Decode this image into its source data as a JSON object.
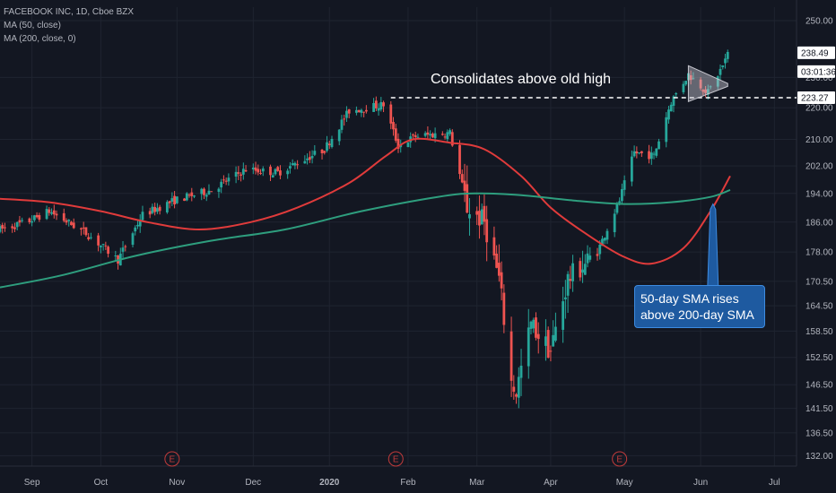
{
  "legend": {
    "symbol": "FACEBOOK INC, 1D, Cboe BZX",
    "ma50": "MA (50, close)",
    "ma200": "MA (200, close, 0)"
  },
  "colors": {
    "background": "#131722",
    "grid": "#1f2430",
    "up": "#26a69a",
    "down": "#ef5350",
    "ma50": "#e03b3b",
    "ma200": "#2e9e7e",
    "text": "#b2b5be",
    "callout": "#1e5aa0",
    "earnings": "#c23b3b"
  },
  "chart_data": {
    "type": "candlestick",
    "title": "FACEBOOK INC, 1D, Cboe BZX",
    "y_axis": {
      "side": "right",
      "ticks": [
        132.0,
        136.5,
        141.5,
        146.5,
        152.5,
        158.5,
        164.5,
        170.5,
        178.0,
        186.0,
        194.0,
        202.0,
        210.0,
        220.0,
        230.0,
        250.0
      ],
      "tick_labels": [
        "132.00",
        "136.50",
        "141.50",
        "146.50",
        "152.50",
        "158.50",
        "164.50",
        "170.50",
        "178.00",
        "186.00",
        "194.00",
        "202.00",
        "210.00",
        "220.00",
        "230.00",
        "250.00"
      ],
      "range": [
        130,
        255
      ],
      "scale": "log"
    },
    "x_axis": {
      "labels": [
        "Sep",
        "Oct",
        "Nov",
        "Dec",
        "2020",
        "Feb",
        "Mar",
        "Apr",
        "May",
        "Jun",
        "Jul"
      ],
      "label_dates": [
        "2019-09-03",
        "2019-10-01",
        "2019-11-01",
        "2019-12-02",
        "2020-01-02",
        "2020-02-03",
        "2020-03-02",
        "2020-04-01",
        "2020-05-01",
        "2020-06-01",
        "2020-07-01"
      ],
      "range": [
        "2019-08-21",
        "2020-07-10"
      ]
    },
    "grid": true,
    "legend_placement": "top-left",
    "series": [
      {
        "name": "MA (50, close)",
        "type": "line",
        "color": "#e03b3b",
        "points": [
          [
            "2019-08-21",
            192.5
          ],
          [
            "2019-09-10",
            191.5
          ],
          [
            "2019-10-01",
            189
          ],
          [
            "2019-10-20",
            186
          ],
          [
            "2019-11-10",
            184
          ],
          [
            "2019-12-01",
            186
          ],
          [
            "2019-12-20",
            190
          ],
          [
            "2020-01-10",
            197
          ],
          [
            "2020-01-25",
            205
          ],
          [
            "2020-02-05",
            210
          ],
          [
            "2020-02-20",
            209
          ],
          [
            "2020-03-05",
            207
          ],
          [
            "2020-03-20",
            199
          ],
          [
            "2020-04-01",
            190
          ],
          [
            "2020-04-15",
            183
          ],
          [
            "2020-04-30",
            177
          ],
          [
            "2020-05-12",
            175
          ],
          [
            "2020-05-25",
            179
          ],
          [
            "2020-06-05",
            189
          ],
          [
            "2020-06-13",
            199
          ]
        ]
      },
      {
        "name": "MA (200, close, 0)",
        "type": "line",
        "color": "#2e9e7e",
        "points": [
          [
            "2019-08-21",
            169
          ],
          [
            "2019-09-15",
            172
          ],
          [
            "2019-10-15",
            177
          ],
          [
            "2019-11-15",
            181
          ],
          [
            "2019-12-15",
            184
          ],
          [
            "2020-01-15",
            189
          ],
          [
            "2020-02-15",
            193
          ],
          [
            "2020-03-01",
            194
          ],
          [
            "2020-03-20",
            193.5
          ],
          [
            "2020-04-10",
            192
          ],
          [
            "2020-05-01",
            191
          ],
          [
            "2020-05-20",
            191.5
          ],
          [
            "2020-06-05",
            193
          ],
          [
            "2020-06-13",
            195
          ]
        ]
      }
    ],
    "price_path": [
      [
        "2019-08-21",
        184
      ],
      [
        "2019-09-01",
        186
      ],
      [
        "2019-09-10",
        189
      ],
      [
        "2019-09-25",
        183
      ],
      [
        "2019-10-08",
        176
      ],
      [
        "2019-10-18",
        188
      ],
      [
        "2019-10-31",
        192
      ],
      [
        "2019-11-15",
        195
      ],
      [
        "2019-11-29",
        201
      ],
      [
        "2019-12-12",
        200
      ],
      [
        "2019-12-31",
        207
      ],
      [
        "2020-01-10",
        219
      ],
      [
        "2020-01-24",
        221
      ],
      [
        "2020-01-30",
        208
      ],
      [
        "2020-02-06",
        211
      ],
      [
        "2020-02-20",
        212
      ],
      [
        "2020-02-27",
        190
      ],
      [
        "2020-03-05",
        186
      ],
      [
        "2020-03-11",
        171
      ],
      [
        "2020-03-16",
        147
      ],
      [
        "2020-03-18",
        145
      ],
      [
        "2020-03-24",
        160
      ],
      [
        "2020-04-01",
        154
      ],
      [
        "2020-04-08",
        171
      ],
      [
        "2020-04-20",
        178
      ],
      [
        "2020-04-29",
        192
      ],
      [
        "2020-05-05",
        206
      ],
      [
        "2020-05-13",
        205
      ],
      [
        "2020-05-20",
        222
      ],
      [
        "2020-05-27",
        231
      ],
      [
        "2020-06-04",
        225
      ],
      [
        "2020-06-10",
        234
      ],
      [
        "2020-06-12",
        238
      ]
    ],
    "price_labels": {
      "last": "238.49",
      "countdown": "03:01:36",
      "level": "223.27"
    },
    "reference_line": {
      "value": 223.27,
      "start_date": "2020-01-27",
      "style": "dashed"
    },
    "triangle_pattern": {
      "start_date": "2020-05-27",
      "end_date": "2020-06-12",
      "top_start": 234,
      "top_end": 228,
      "bottom_start": 222,
      "bottom_end": 227
    },
    "earnings_markers": {
      "label": "E",
      "dates": [
        "2019-10-30",
        "2020-01-29",
        "2020-04-29"
      ]
    },
    "annotations": [
      {
        "text": "Consolidates above old high"
      },
      {
        "text": "50-day SMA rises above 200-day SMA",
        "arrow_to_date": "2020-06-06",
        "arrow_to_value": 191
      }
    ]
  },
  "annotations": {
    "old_high": "Consolidates above old high",
    "sma_cross": "50-day SMA rises above 200-day SMA"
  }
}
